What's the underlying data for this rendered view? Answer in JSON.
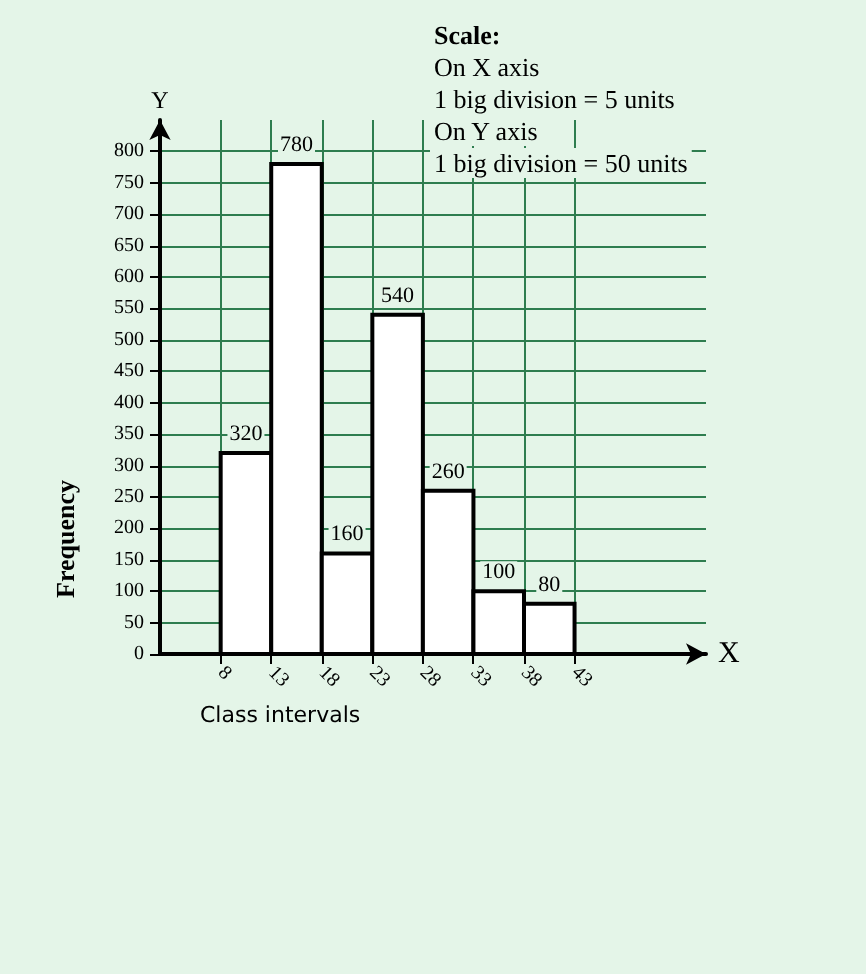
{
  "chart_data": {
    "type": "histogram",
    "xlabel": "Class intervals",
    "ylabel": "Frequency",
    "bins": [
      8,
      13,
      18,
      23,
      28,
      33,
      38,
      43
    ],
    "values": [
      320,
      780,
      160,
      540,
      260,
      100,
      80
    ],
    "color": "#ffffff",
    "data_labels": true,
    "xlim": [
      2,
      56
    ],
    "xticks": [
      8,
      13,
      18,
      23,
      28,
      33,
      38,
      43
    ],
    "ylim": [
      0,
      850
    ],
    "yticks": [
      0,
      50,
      100,
      150,
      200,
      250,
      300,
      350,
      400,
      450,
      500,
      550,
      600,
      650,
      700,
      750,
      800
    ],
    "grid": true,
    "annotations": [
      "Scale:",
      "On X axis",
      "1 big division = 5 units",
      "On Y axis",
      "1 big division = 50 units",
      "X",
      "Y"
    ]
  }
}
